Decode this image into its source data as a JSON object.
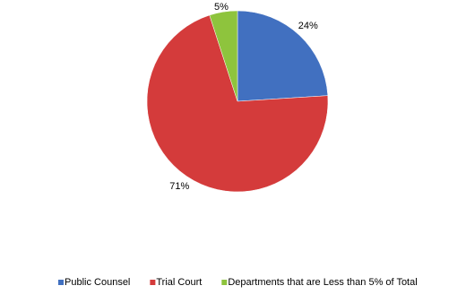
{
  "chart_data": {
    "type": "pie",
    "categories": [
      "Public Counsel",
      "Trial Court",
      "Departments that are Less than 5% of Total"
    ],
    "values": [
      24,
      71,
      5
    ],
    "value_labels": [
      "24%",
      "71%",
      "5%"
    ],
    "colors": [
      "#4170c0",
      "#d43b3b",
      "#8ec43d"
    ],
    "legend": "bottom"
  }
}
